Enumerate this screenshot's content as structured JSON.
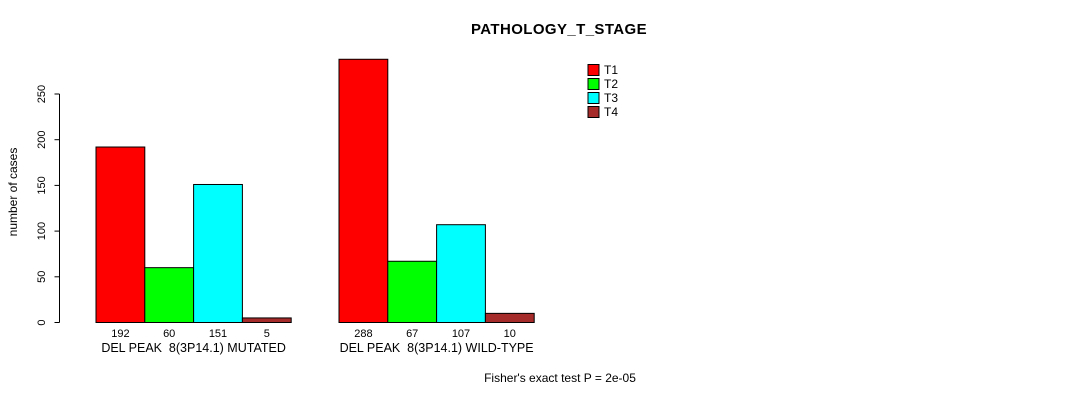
{
  "chart_data": {
    "type": "bar",
    "title": "PATHOLOGY_T_STAGE",
    "ylabel": "number of cases",
    "xlabel": "",
    "ylim": [
      0,
      290
    ],
    "yticks": [
      0,
      50,
      100,
      150,
      200,
      250
    ],
    "grid": false,
    "legend_position": "top-right",
    "series": [
      {
        "name": "T1",
        "color": "#FF0000"
      },
      {
        "name": "T2",
        "color": "#00FF00"
      },
      {
        "name": "T3",
        "color": "#00FFFF"
      },
      {
        "name": "T4",
        "color": "#A52A2A"
      }
    ],
    "groups": [
      {
        "label": "DEL PEAK  8(3P14.1) MUTATED",
        "values": [
          192,
          60,
          151,
          5
        ]
      },
      {
        "label": "DEL PEAK  8(3P14.1) WILD-TYPE",
        "values": [
          288,
          67,
          107,
          10
        ]
      }
    ],
    "annotation": "Fisher's exact test P = 2e-05",
    "axis_color": "#000000",
    "bar_border_color": "#000000"
  }
}
